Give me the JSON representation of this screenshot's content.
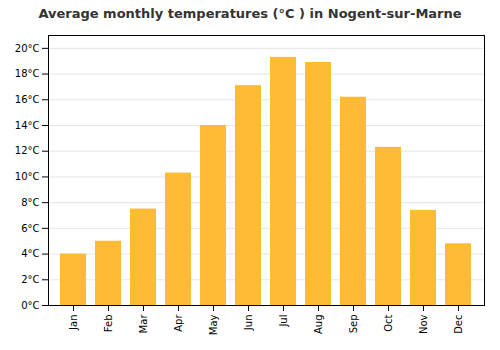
{
  "chart_data": {
    "type": "bar",
    "title": "Average monthly temperatures (°C ) in Nogent-sur-Marne",
    "categories": [
      "Jan",
      "Feb",
      "Mar",
      "Apr",
      "May",
      "Jun",
      "Jul",
      "Aug",
      "Sep",
      "Oct",
      "Nov",
      "Dec"
    ],
    "values": [
      4.0,
      5.0,
      7.5,
      10.3,
      14.0,
      17.1,
      19.3,
      18.9,
      16.2,
      12.3,
      7.4,
      4.8
    ],
    "color": "#FFBB33",
    "ylim": [
      0,
      21
    ],
    "yticks": [
      {
        "value": 0,
        "label": "0°C"
      },
      {
        "value": 2,
        "label": "2°C"
      },
      {
        "value": 4,
        "label": "4°C"
      },
      {
        "value": 6,
        "label": "6°C"
      },
      {
        "value": 8,
        "label": "8°C"
      },
      {
        "value": 10,
        "label": "10°C"
      },
      {
        "value": 12,
        "label": "12°C"
      },
      {
        "value": 14,
        "label": "14°C"
      },
      {
        "value": 16,
        "label": "16°C"
      },
      {
        "value": 18,
        "label": "18°C"
      },
      {
        "value": 20,
        "label": "20°C"
      }
    ],
    "grid": true
  }
}
